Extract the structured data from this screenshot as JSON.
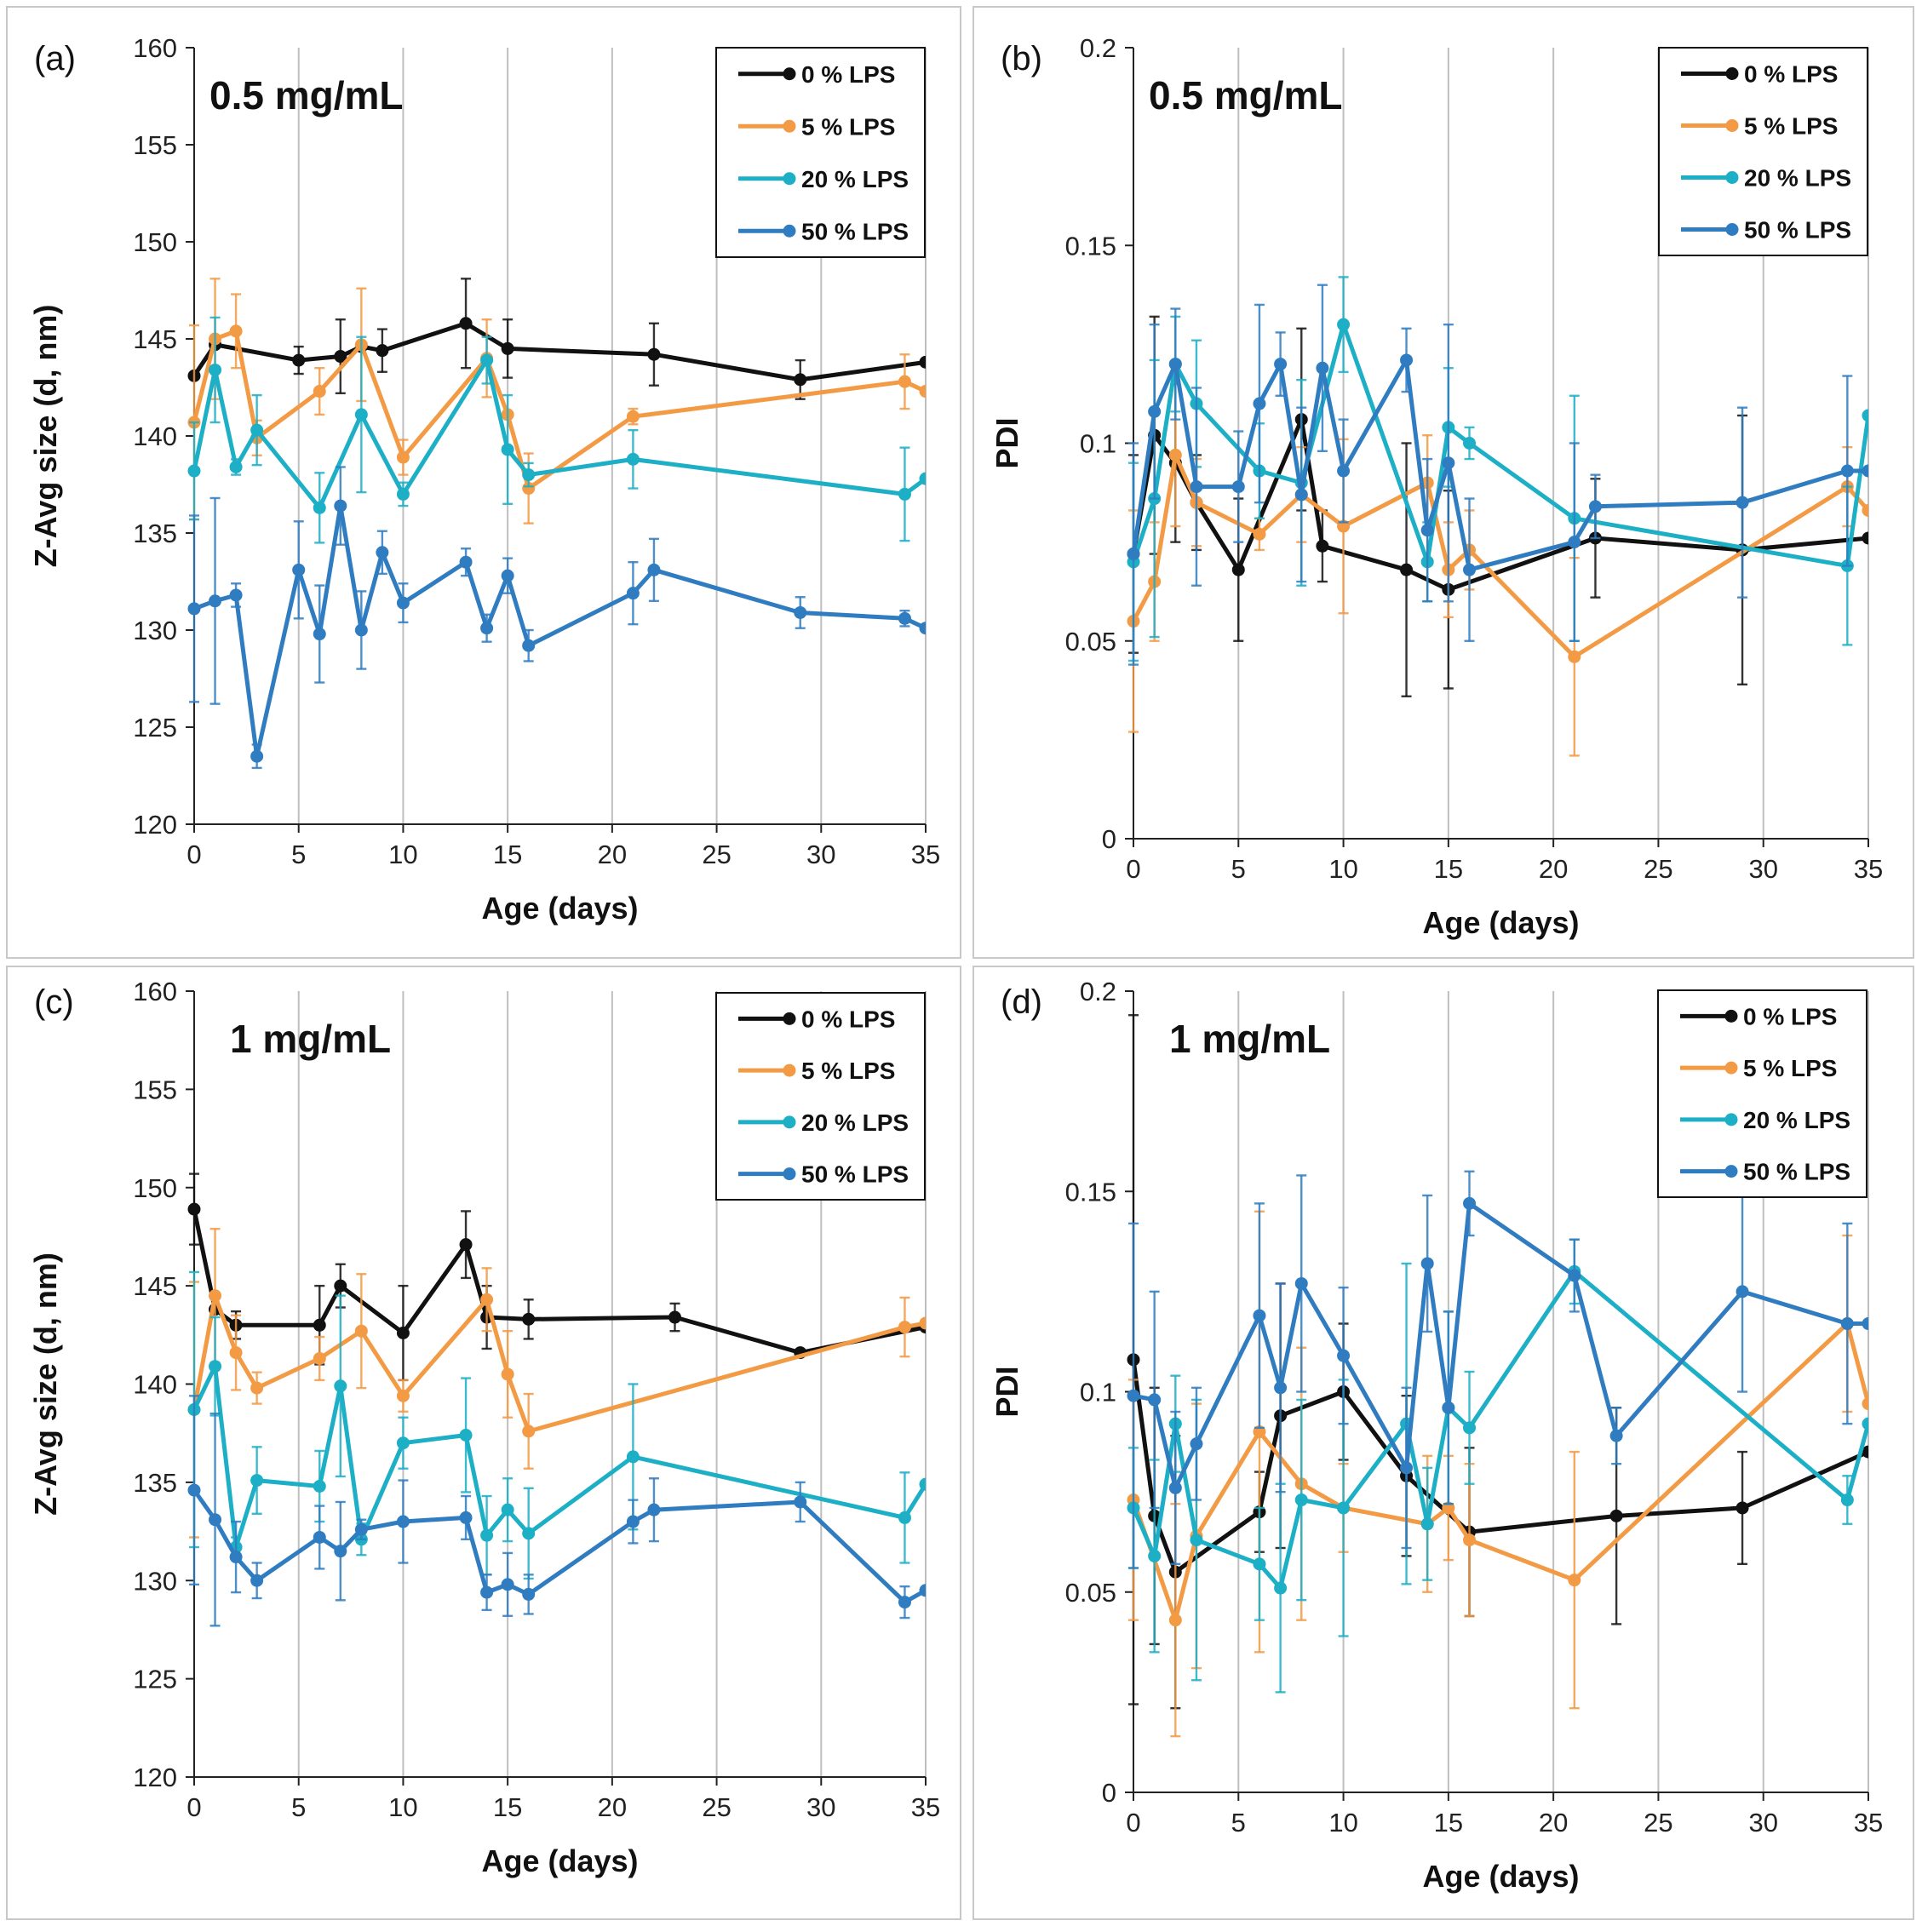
{
  "figure": {
    "colors": {
      "black": "#111111",
      "orange": "#F39A45",
      "cyan": "#1DAFC6",
      "blue": "#2F7CC1",
      "grid": "#BEBEBE",
      "border": "#C8C8C8"
    }
  },
  "chart_data": [
    {
      "type": "line",
      "panel_label": "(a)",
      "annotation": "0.5 mg/mL",
      "xlabel": "Age (days)",
      "ylabel": "Z-Avg size (d, nm)",
      "xlim": [
        0,
        35
      ],
      "ylim": [
        120,
        160
      ],
      "xticks": [
        0,
        5,
        10,
        15,
        20,
        25,
        30,
        35
      ],
      "yticks": [
        120,
        125,
        130,
        135,
        140,
        145,
        150,
        155,
        160
      ],
      "xtick_labels": [
        "0",
        "5",
        "10",
        "15",
        "20",
        "25",
        "30",
        "35"
      ],
      "ytick_labels": [
        "120",
        "125",
        "130",
        "135",
        "140",
        "145",
        "150",
        "155",
        "160"
      ],
      "legend_position": "top-right",
      "series": [
        {
          "name": "0 % LPS",
          "color_key": "black",
          "x": [
            0,
            1,
            5,
            7,
            8,
            9,
            13,
            15,
            22,
            29,
            35
          ],
          "y": [
            143.1,
            144.7,
            143.9,
            144.1,
            144.6,
            144.4,
            145.8,
            144.5,
            144.2,
            142.9,
            143.8
          ],
          "err": [
            0,
            0,
            0.7,
            1.9,
            0,
            1.1,
            2.3,
            1.5,
            1.6,
            1.0,
            0
          ]
        },
        {
          "name": "5 % LPS",
          "color_key": "orange",
          "x": [
            0,
            1,
            2,
            3,
            6,
            8,
            10,
            14,
            15,
            16,
            21,
            34,
            35
          ],
          "y": [
            140.7,
            145.0,
            145.4,
            139.9,
            142.3,
            144.7,
            138.9,
            144.0,
            141.1,
            137.3,
            141.0,
            142.8,
            142.3
          ],
          "err": [
            5.0,
            3.1,
            1.9,
            0.9,
            1.2,
            2.9,
            0.9,
            2.0,
            0,
            1.8,
            0.4,
            1.4,
            0
          ]
        },
        {
          "name": "20 % LPS",
          "color_key": "cyan",
          "x": [
            0,
            1,
            2,
            3,
            6,
            8,
            10,
            14,
            15,
            16,
            21,
            34,
            35
          ],
          "y": [
            138.2,
            143.4,
            138.4,
            140.3,
            136.3,
            141.1,
            137.0,
            143.9,
            139.3,
            138.0,
            138.8,
            137.0,
            137.8
          ],
          "err": [
            2.5,
            2.7,
            0.4,
            1.8,
            1.8,
            4.0,
            0.6,
            1.2,
            2.8,
            0.6,
            1.5,
            2.4,
            0
          ]
        },
        {
          "name": "50 % LPS",
          "color_key": "blue",
          "x": [
            0,
            1,
            2,
            3,
            5,
            6,
            7,
            8,
            9,
            10,
            13,
            14,
            15,
            16,
            21,
            22,
            29,
            34,
            35
          ],
          "y": [
            131.1,
            131.5,
            131.8,
            123.5,
            133.1,
            129.8,
            136.4,
            130.0,
            134.0,
            131.4,
            133.5,
            130.1,
            132.8,
            129.2,
            131.9,
            133.1,
            130.9,
            130.6,
            130.1
          ],
          "err": [
            4.8,
            5.3,
            0.6,
            0.6,
            2.5,
            2.5,
            2.0,
            2.0,
            1.1,
            1.0,
            0.7,
            0.7,
            0.9,
            0.8,
            1.6,
            1.6,
            0.8,
            0.4,
            0
          ]
        }
      ]
    },
    {
      "type": "line",
      "panel_label": "(b)",
      "annotation": "0.5 mg/mL",
      "xlabel": "Age (days)",
      "ylabel": "PDI",
      "xlim": [
        0,
        35
      ],
      "ylim": [
        0,
        0.2
      ],
      "xticks": [
        0,
        5,
        10,
        15,
        20,
        25,
        30,
        35
      ],
      "yticks": [
        0,
        0.05,
        0.1,
        0.15,
        0.2
      ],
      "xtick_labels": [
        "0",
        "5",
        "10",
        "15",
        "20",
        "25",
        "30",
        "35"
      ],
      "ytick_labels": [
        "0",
        "0.05",
        "0.1",
        "0.15",
        "0.2"
      ],
      "legend_position": "top-right",
      "series": [
        {
          "name": "0 % LPS",
          "color_key": "black",
          "x": [
            0,
            1,
            2,
            3,
            5,
            8,
            9,
            13,
            15,
            22,
            29,
            35
          ],
          "y": [
            0.072,
            0.102,
            0.095,
            0.085,
            0.068,
            0.106,
            0.074,
            0.068,
            0.063,
            0.076,
            0.073,
            0.076
          ],
          "err": [
            0.025,
            0.03,
            0.02,
            0.012,
            0.018,
            0.023,
            0.009,
            0.032,
            0.025,
            0.015,
            0.034,
            0
          ]
        },
        {
          "name": "5 % LPS",
          "color_key": "orange",
          "x": [
            0,
            1,
            2,
            3,
            6,
            8,
            10,
            14,
            15,
            16,
            21,
            34,
            35
          ],
          "y": [
            0.055,
            0.065,
            0.097,
            0.085,
            0.077,
            0.087,
            0.079,
            0.09,
            0.068,
            0.073,
            0.046,
            0.089,
            0.083
          ],
          "err": [
            0.028,
            0.015,
            0.018,
            0.011,
            0.004,
            0.012,
            0.022,
            0.012,
            0.012,
            0.01,
            0.025,
            0.01,
            0
          ]
        },
        {
          "name": "20 % LPS",
          "color_key": "cyan",
          "x": [
            0,
            1,
            2,
            3,
            6,
            8,
            10,
            14,
            15,
            16,
            21,
            34,
            35
          ],
          "y": [
            0.07,
            0.086,
            0.12,
            0.11,
            0.093,
            0.09,
            0.13,
            0.07,
            0.104,
            0.1,
            0.081,
            0.069,
            0.107
          ],
          "err": [
            0.025,
            0.035,
            0.012,
            0.016,
            0.012,
            0.026,
            0.012,
            0.01,
            0.015,
            0.004,
            0.031,
            0.02,
            0
          ]
        },
        {
          "name": "50 % LPS",
          "color_key": "blue",
          "x": [
            0,
            1,
            2,
            3,
            5,
            6,
            7,
            8,
            9,
            10,
            13,
            14,
            15,
            16,
            21,
            22,
            29,
            34,
            35
          ],
          "y": [
            0.072,
            0.108,
            0.12,
            0.089,
            0.089,
            0.11,
            0.12,
            0.087,
            0.119,
            0.093,
            0.121,
            0.078,
            0.095,
            0.068,
            0.075,
            0.084,
            0.085,
            0.093,
            0.093
          ],
          "err": [
            0.028,
            0.022,
            0.014,
            0.025,
            0.014,
            0.025,
            0.008,
            0.022,
            0.021,
            0.013,
            0.008,
            0.018,
            0.035,
            0.018,
            0.025,
            0.008,
            0.024,
            0.024,
            0
          ]
        }
      ]
    },
    {
      "type": "line",
      "panel_label": "(c)",
      "annotation": "1 mg/mL",
      "xlabel": "Age (days)",
      "ylabel": "Z-Avg size (d, nm)",
      "xlim": [
        0,
        35
      ],
      "ylim": [
        120,
        160
      ],
      "xticks": [
        0,
        5,
        10,
        15,
        20,
        25,
        30,
        35
      ],
      "yticks": [
        120,
        125,
        130,
        135,
        140,
        145,
        150,
        155,
        160
      ],
      "xtick_labels": [
        "0",
        "5",
        "10",
        "15",
        "20",
        "25",
        "30",
        "35"
      ],
      "ytick_labels": [
        "120",
        "125",
        "130",
        "135",
        "140",
        "145",
        "150",
        "155",
        "160"
      ],
      "legend_position": "top-right",
      "series": [
        {
          "name": "0 % LPS",
          "color_key": "black",
          "x": [
            0,
            1,
            2,
            6,
            7,
            10,
            13,
            14,
            16,
            23,
            29,
            35
          ],
          "y": [
            148.9,
            143.8,
            143.0,
            143.0,
            145.0,
            142.6,
            147.1,
            143.4,
            143.3,
            143.4,
            141.6,
            142.9
          ],
          "err": [
            1.8,
            0,
            0.7,
            2.0,
            1.1,
            2.4,
            1.7,
            1.6,
            1.0,
            0.7,
            0,
            0
          ]
        },
        {
          "name": "5 % LPS",
          "color_key": "orange",
          "x": [
            0,
            1,
            2,
            3,
            6,
            8,
            10,
            14,
            15,
            16,
            34,
            35
          ],
          "y": [
            138.7,
            144.5,
            141.6,
            139.8,
            141.3,
            142.7,
            139.4,
            144.3,
            140.5,
            137.6,
            142.9,
            143.1
          ],
          "err": [
            6.5,
            3.4,
            1.9,
            0.8,
            1.1,
            2.9,
            0.8,
            1.6,
            2.2,
            1.9,
            1.5,
            0
          ]
        },
        {
          "name": "20 % LPS",
          "color_key": "cyan",
          "x": [
            0,
            1,
            2,
            3,
            6,
            7,
            8,
            10,
            13,
            14,
            15,
            16,
            21,
            34,
            35
          ],
          "y": [
            138.7,
            140.9,
            131.7,
            135.1,
            134.8,
            139.9,
            132.1,
            137.0,
            137.4,
            132.3,
            133.6,
            132.4,
            136.3,
            133.2,
            134.9
          ],
          "err": [
            7.0,
            2.5,
            0.5,
            1.7,
            1.8,
            4.6,
            0.8,
            1.3,
            2.9,
            2.0,
            1.6,
            2.3,
            3.7,
            2.3,
            0
          ]
        },
        {
          "name": "50 % LPS",
          "color_key": "blue",
          "x": [
            0,
            1,
            2,
            3,
            6,
            7,
            8,
            10,
            13,
            14,
            15,
            16,
            21,
            22,
            29,
            34,
            35
          ],
          "y": [
            134.6,
            133.1,
            131.2,
            130.0,
            132.2,
            131.5,
            132.6,
            133.0,
            133.2,
            129.4,
            129.8,
            129.3,
            133.0,
            133.6,
            134.0,
            128.9,
            129.5
          ],
          "err": [
            4.8,
            5.4,
            1.8,
            0.9,
            1.6,
            2.5,
            0.5,
            2.1,
            1.1,
            0.9,
            1.6,
            1.0,
            1.1,
            1.6,
            1.0,
            0.8,
            0
          ]
        }
      ]
    },
    {
      "type": "line",
      "panel_label": "(d)",
      "annotation": "1 mg/mL",
      "xlabel": "Age (days)",
      "ylabel": "PDI",
      "xlim": [
        0,
        35
      ],
      "ylim": [
        0,
        0.2
      ],
      "xticks": [
        0,
        5,
        10,
        15,
        20,
        25,
        30,
        35
      ],
      "yticks": [
        0,
        0.05,
        0.1,
        0.15,
        0.2
      ],
      "xtick_labels": [
        "0",
        "5",
        "10",
        "15",
        "20",
        "25",
        "30",
        "35"
      ],
      "ytick_labels": [
        "0",
        "0.05",
        "0.1",
        "0.15",
        "0.2"
      ],
      "legend_position": "top-right",
      "series": [
        {
          "name": "0 % LPS",
          "color_key": "black",
          "x": [
            0,
            1,
            2,
            6,
            7,
            10,
            13,
            16,
            23,
            29,
            35
          ],
          "y": [
            0.108,
            0.069,
            0.055,
            0.07,
            0.094,
            0.1,
            0.079,
            0.065,
            0.069,
            0.071,
            0.085
          ],
          "err": [
            0.086,
            0.032,
            0.034,
            0.01,
            0.033,
            0.017,
            0.02,
            0.021,
            0.027,
            0.014,
            0
          ]
        },
        {
          "name": "5 % LPS",
          "color_key": "orange",
          "x": [
            0,
            2,
            3,
            6,
            8,
            10,
            14,
            15,
            16,
            21,
            34,
            35
          ],
          "y": [
            0.073,
            0.043,
            0.064,
            0.09,
            0.077,
            0.071,
            0.067,
            0.071,
            0.063,
            0.053,
            0.117,
            0.097
          ],
          "err": [
            0.03,
            0.029,
            0.033,
            0.055,
            0.034,
            0.011,
            0.017,
            0.013,
            0.019,
            0.032,
            0.022,
            0
          ]
        },
        {
          "name": "20 % LPS",
          "color_key": "cyan",
          "x": [
            0,
            1,
            2,
            3,
            6,
            7,
            8,
            10,
            13,
            14,
            15,
            16,
            21,
            34,
            35
          ],
          "y": [
            0.071,
            0.059,
            0.092,
            0.063,
            0.057,
            0.051,
            0.073,
            0.071,
            0.092,
            0.067,
            0.096,
            0.091,
            0.13,
            0.073,
            0.092
          ],
          "err": [
            0.015,
            0.024,
            0.012,
            0.035,
            0.014,
            0.026,
            0.025,
            0.032,
            0.04,
            0.014,
            0.024,
            0.014,
            0.008,
            0.006,
            0
          ]
        },
        {
          "name": "50 % LPS",
          "color_key": "blue",
          "x": [
            0,
            1,
            2,
            3,
            6,
            7,
            8,
            10,
            13,
            14,
            15,
            16,
            21,
            23,
            29,
            34,
            35
          ],
          "y": [
            0.099,
            0.098,
            0.076,
            0.087,
            0.119,
            0.101,
            0.127,
            0.109,
            0.081,
            0.132,
            0.096,
            0.147,
            0.129,
            0.089,
            0.125,
            0.117,
            0.117
          ],
          "err": [
            0.043,
            0.027,
            0.019,
            0.014,
            0.028,
            0.026,
            0.027,
            0.017,
            0.02,
            0.017,
            0.024,
            0.008,
            0.009,
            0.007,
            0.025,
            0.025,
            0
          ]
        }
      ]
    }
  ]
}
